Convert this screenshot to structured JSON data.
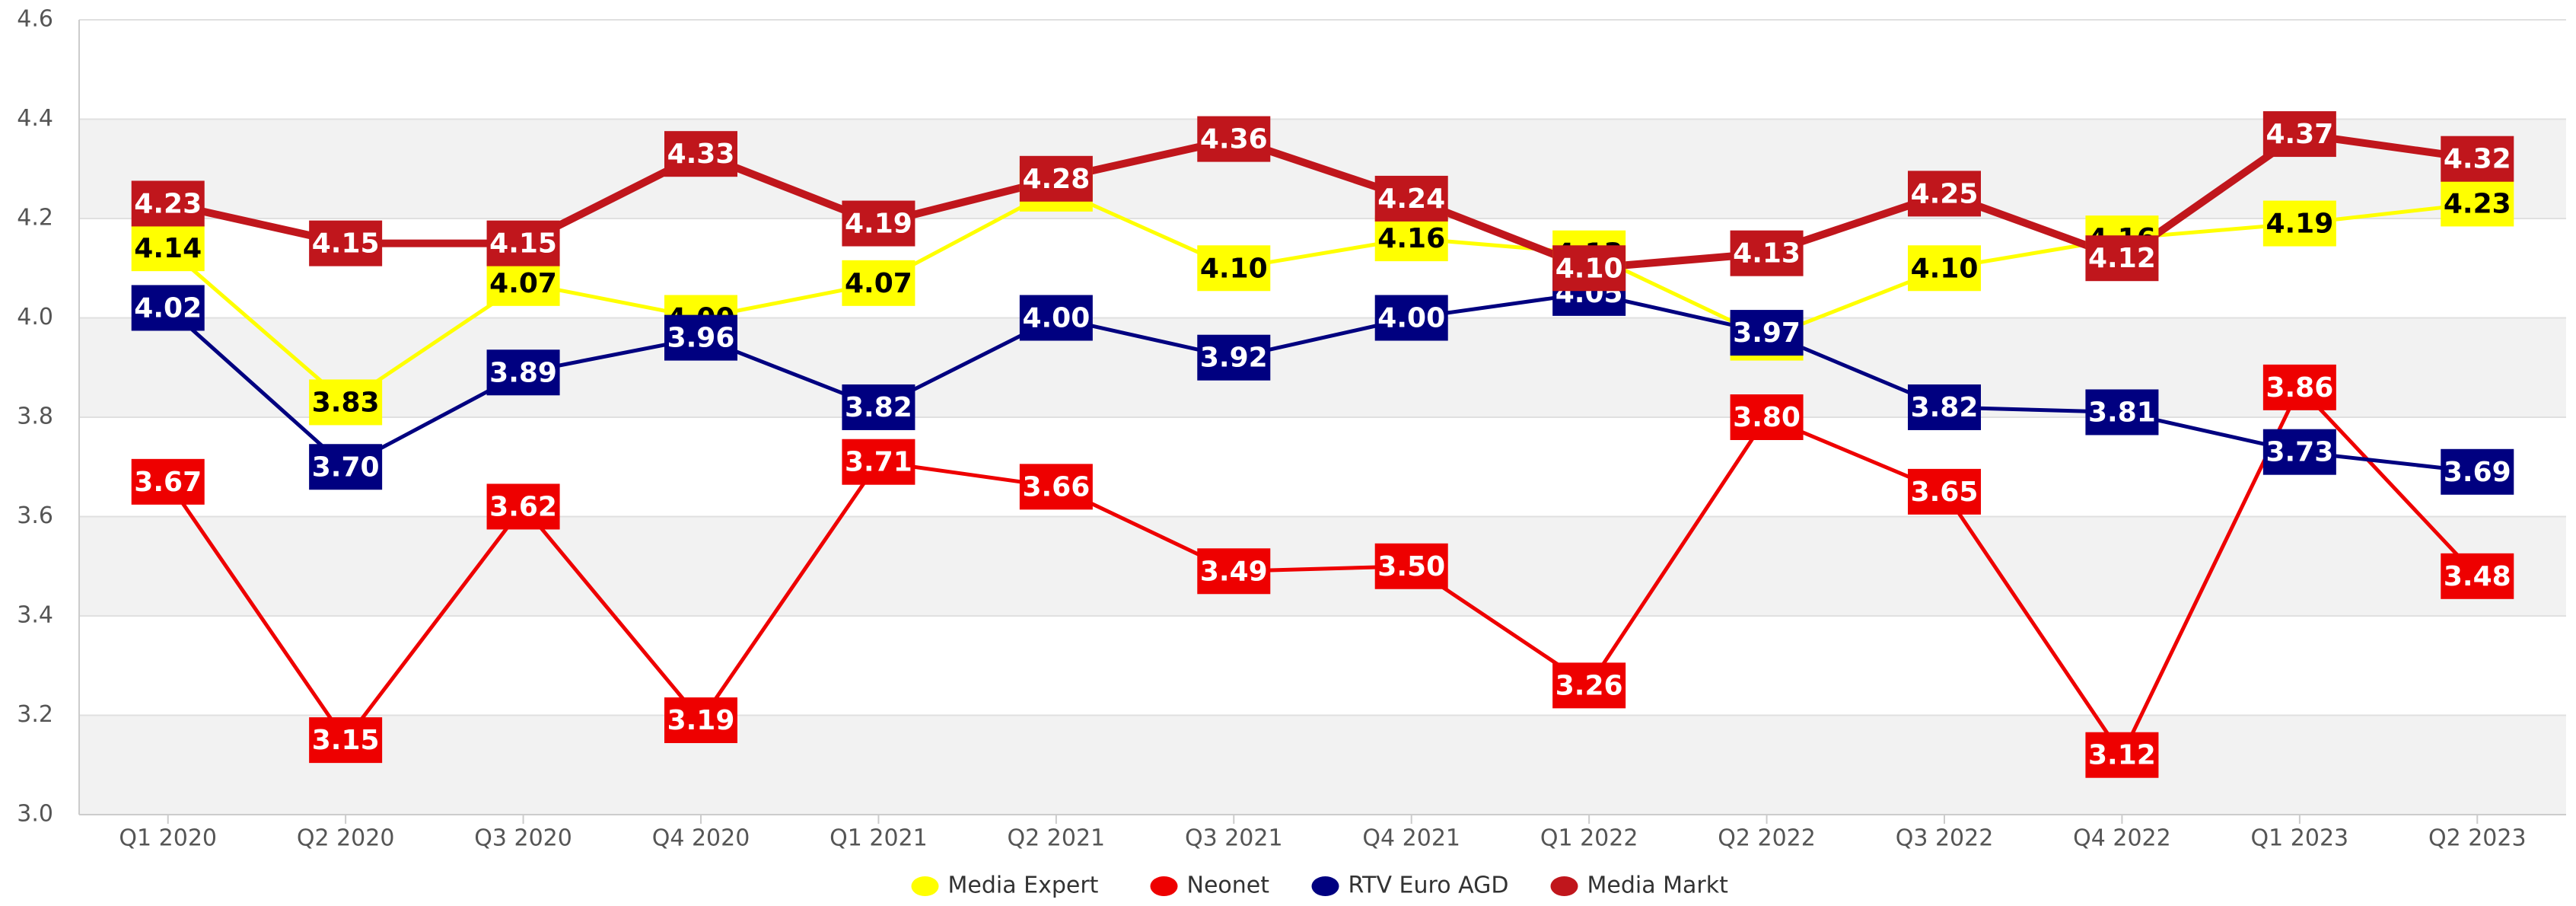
{
  "chart_data": {
    "type": "line",
    "categories": [
      "Q1 2020",
      "Q2 2020",
      "Q3 2020",
      "Q4 2020",
      "Q1 2021",
      "Q2 2021",
      "Q3 2021",
      "Q4 2021",
      "Q1 2022",
      "Q2 2022",
      "Q3 2022",
      "Q4 2022",
      "Q1 2023",
      "Q2 2023"
    ],
    "series": [
      {
        "name": "Media Expert",
        "color": "#ffff00",
        "values": [
          4.14,
          3.83,
          4.07,
          4.0,
          4.07,
          4.26,
          4.1,
          4.16,
          4.13,
          3.96,
          4.1,
          4.16,
          4.19,
          4.23
        ],
        "value_labels": [
          "4.14",
          "3.83",
          "4.07",
          "4.00",
          "4.07",
          "4.26",
          "4.10",
          "4.16",
          "4.13",
          "3.96",
          "4.10",
          "4.16",
          "4.19",
          "4.23"
        ]
      },
      {
        "name": "Neonet",
        "color": "#ee0000",
        "values": [
          3.67,
          3.15,
          3.62,
          3.19,
          3.71,
          3.66,
          3.49,
          3.5,
          3.26,
          3.8,
          3.65,
          3.12,
          3.86,
          3.48
        ],
        "value_labels": [
          "3.67",
          "3.15",
          "3.62",
          "3.19",
          "3.71",
          "3.66",
          "3.49",
          "3.50",
          "3.26",
          "3.80",
          "3.65",
          "3.12",
          "3.86",
          "3.48"
        ]
      },
      {
        "name": "RTV Euro AGD",
        "color": "#000080",
        "values": [
          4.02,
          3.7,
          3.89,
          3.96,
          3.82,
          4.0,
          3.92,
          4.0,
          4.05,
          3.97,
          3.82,
          3.81,
          3.73,
          3.69
        ],
        "value_labels": [
          "4.02",
          "3.70",
          "3.89",
          "3.96",
          "3.82",
          "4.00",
          "3.92",
          "4.00",
          "4.05",
          "3.97",
          "3.82",
          "3.81",
          "3.73",
          "3.69"
        ]
      },
      {
        "name": "Media Markt",
        "color": "#c0161c",
        "values": [
          4.23,
          4.15,
          4.15,
          4.33,
          4.19,
          4.28,
          4.36,
          4.24,
          4.1,
          4.13,
          4.25,
          4.12,
          4.37,
          4.32
        ],
        "value_labels": [
          "4.23",
          "4.15",
          "4.15",
          "4.33",
          "4.19",
          "4.28",
          "4.36",
          "4.24",
          "4.10",
          "4.13",
          "4.25",
          "4.12",
          "4.37",
          "4.32"
        ]
      }
    ],
    "ylim": [
      3.0,
      4.6
    ],
    "yticks": [
      {
        "value": 3.0,
        "label": "3.0"
      },
      3.2,
      3.4,
      3.6,
      3.8,
      {
        "value": 4.0,
        "label": "4.0"
      },
      4.2,
      4.4,
      4.6
    ],
    "grid": true,
    "legend": "bottom"
  }
}
